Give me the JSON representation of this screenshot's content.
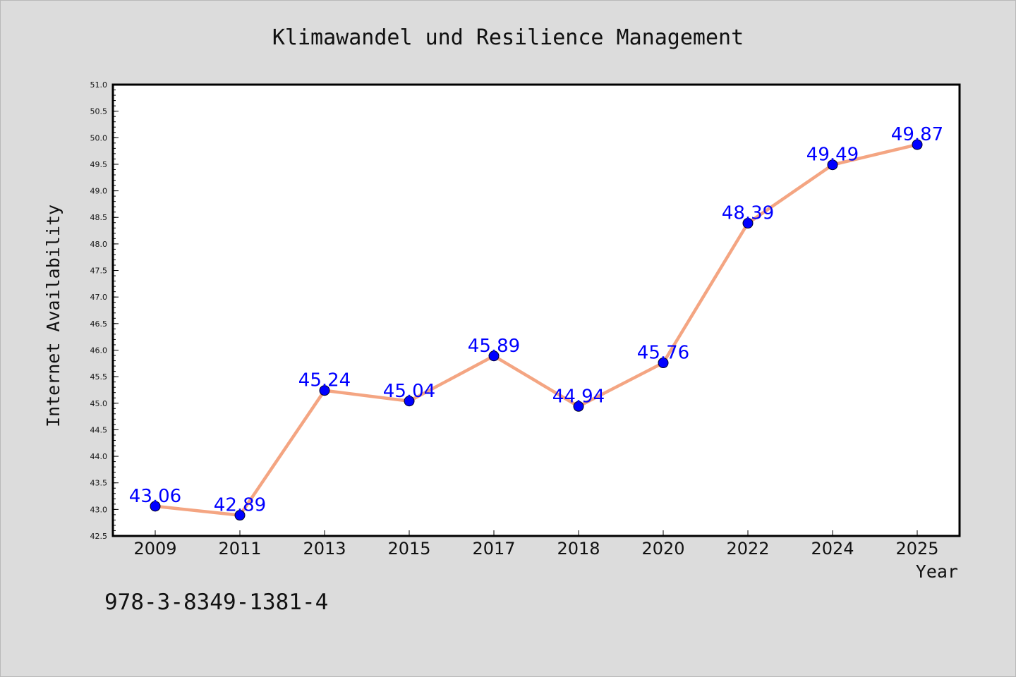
{
  "chart_data": {
    "type": "line",
    "title": "Klimawandel und Resilience Management",
    "xlabel": "Year",
    "ylabel": "Internet Availability",
    "categories": [
      "2009",
      "2011",
      "2013",
      "2015",
      "2017",
      "2018",
      "2020",
      "2022",
      "2024",
      "2025"
    ],
    "series": [
      {
        "values": [
          43.06,
          42.89,
          45.24,
          45.04,
          45.89,
          44.94,
          45.76,
          48.39,
          49.49,
          49.87
        ],
        "labels": [
          "43.06",
          "42.89",
          "45.24",
          "45.04",
          "45.89",
          "44.94",
          "45.76",
          "48.39",
          "49.49",
          "49.87"
        ],
        "line_color": "#f4a582",
        "marker_color": "#0000ff"
      }
    ],
    "ylim": [
      42.5,
      51.0
    ],
    "yticks": [
      "42.5",
      "43.0",
      "43.5",
      "44.0",
      "44.5",
      "45.0",
      "45.5",
      "46.0",
      "46.5",
      "47.0",
      "47.5",
      "48.0",
      "48.5",
      "49.0",
      "49.5",
      "50.0",
      "50.5",
      "51.0"
    ],
    "grid": false,
    "legend": "none"
  },
  "annotation": "978-3-8349-1381-4",
  "colors": {
    "background": "#dcdcdc",
    "plot_background": "#ffffff",
    "line": "#f4a582",
    "marker": "#0000ff",
    "data_label": "#0000ff"
  }
}
